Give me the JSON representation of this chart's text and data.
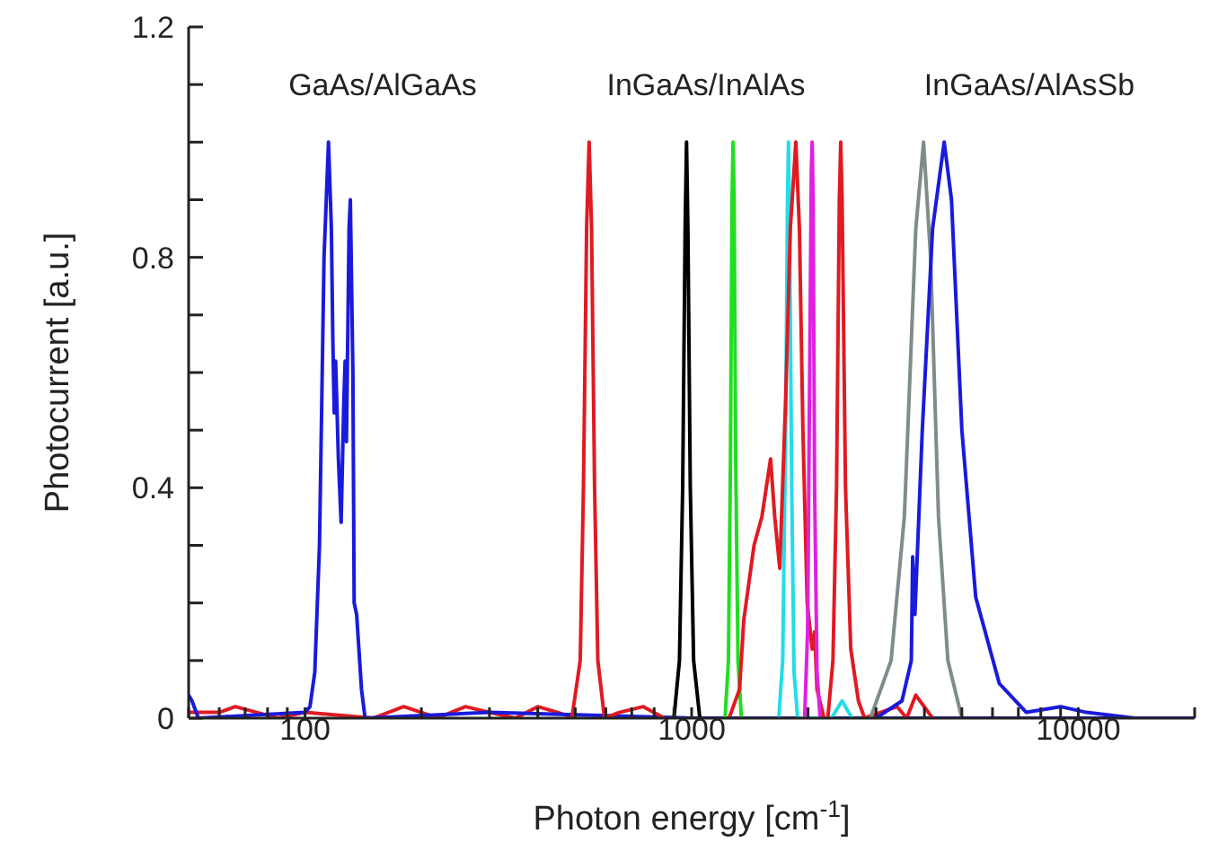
{
  "chart_data": {
    "type": "line",
    "xlabel": "Photon energy [cm$^{-1}$]",
    "ylabel": "Photocurrent [a.u.]",
    "log": "x",
    "marker": "none",
    "line_style": "solid",
    "xlim": [
      50,
      20000
    ],
    "xticks": [
      {
        "value": 50,
        "label": null
      },
      {
        "value": 60,
        "label": null
      },
      {
        "value": 70,
        "label": null
      },
      {
        "value": 80,
        "label": null
      },
      {
        "value": 90,
        "label": null
      },
      100,
      {
        "value": 200,
        "label": null
      },
      {
        "value": 300,
        "label": null
      },
      {
        "value": 400,
        "label": null
      },
      {
        "value": 500,
        "label": null
      },
      {
        "value": 600,
        "label": null
      },
      {
        "value": 700,
        "label": null
      },
      {
        "value": 800,
        "label": null
      },
      {
        "value": 900,
        "label": null
      },
      1000,
      {
        "value": 2000,
        "label": null
      },
      {
        "value": 3000,
        "label": null
      },
      {
        "value": 4000,
        "label": null
      },
      {
        "value": 5000,
        "label": null
      },
      {
        "value": 6000,
        "label": null
      },
      {
        "value": 7000,
        "label": null
      },
      {
        "value": 8000,
        "label": null
      },
      {
        "value": 9000,
        "label": null
      },
      10000,
      {
        "value": 20000,
        "label": null
      }
    ],
    "ylim": [
      0,
      1.2
    ],
    "yticks": [
      0,
      {
        "value": 0.1,
        "label": null
      },
      {
        "value": 0.2,
        "label": null
      },
      {
        "value": 0.3,
        "label": null
      },
      0.4,
      {
        "value": 0.5,
        "label": null
      },
      {
        "value": 0.6,
        "label": null
      },
      {
        "value": 0.7,
        "label": null
      },
      0.8,
      {
        "value": 0.9,
        "label": null
      },
      {
        "value": 1.0,
        "label": null
      },
      {
        "value": 1.1,
        "label": null
      },
      1.2
    ],
    "annotations": [
      "GaAs/AlGaAs",
      "InGaAs/InAlAs",
      "InGaAs/AlAsSb"
    ],
    "series": [
      {
        "color": "#e01a22",
        "x": [
          50,
          60,
          66,
          75,
          85,
          100,
          150,
          180,
          200,
          220,
          260,
          300,
          350,
          400,
          450,
          500
        ],
        "values": [
          0.01,
          0.01,
          0.02,
          0.01,
          0.0,
          0.01,
          0.0,
          0.02,
          0.01,
          0.0,
          0.02,
          0.01,
          0.0,
          0.02,
          0.01,
          0.0
        ]
      },
      {
        "color": "#1a1adc",
        "x": [
          50,
          51,
          53,
          100,
          103,
          106,
          109,
          112,
          115,
          117,
          118,
          119,
          120,
          122,
          124,
          126,
          127,
          128,
          130,
          131,
          133,
          134,
          136,
          140,
          143,
          300,
          1000,
          3000,
          20000
        ],
        "values": [
          0.04,
          0.03,
          0.0,
          0.01,
          0.02,
          0.08,
          0.3,
          0.8,
          1.0,
          0.85,
          0.66,
          0.53,
          0.62,
          0.45,
          0.34,
          0.55,
          0.62,
          0.48,
          0.85,
          0.9,
          0.6,
          0.2,
          0.18,
          0.05,
          0.0,
          0.01,
          0.0,
          0.0,
          0.0
        ]
      },
      {
        "color": "#e01a22",
        "x": [
          490,
          515,
          525,
          535,
          543,
          551,
          561,
          572,
          595,
          650,
          750,
          850
        ],
        "values": [
          0.0,
          0.1,
          0.4,
          0.85,
          1.0,
          0.85,
          0.4,
          0.1,
          0.0,
          0.01,
          0.02,
          0.0
        ]
      },
      {
        "color": "#000000",
        "x": [
          900,
          930,
          948,
          962,
          970,
          978,
          992,
          1012,
          1050
        ],
        "values": [
          0.0,
          0.1,
          0.4,
          0.85,
          1.0,
          0.85,
          0.4,
          0.1,
          0.0
        ]
      },
      {
        "color": "#22dd22",
        "x": [
          1220,
          1245,
          1260,
          1272,
          1280,
          1288,
          1300,
          1318,
          1345
        ],
        "values": [
          0.0,
          0.1,
          0.45,
          0.9,
          1.0,
          0.9,
          0.45,
          0.1,
          0.0
        ]
      },
      {
        "color": "#22dde8",
        "x": [
          1680,
          1720,
          1750,
          1770,
          1780,
          1792,
          1815,
          1840,
          1880,
          2300,
          2450,
          2600
        ],
        "values": [
          0.0,
          0.1,
          0.5,
          0.9,
          1.0,
          0.85,
          0.4,
          0.08,
          0.0,
          0.0,
          0.03,
          0.0
        ]
      },
      {
        "color": "#e01a22",
        "x": [
          1250,
          1330,
          1364,
          1450,
          1520,
          1600,
          1640,
          1690,
          1750,
          1800,
          1860,
          1900,
          1940,
          1990,
          2050,
          2080,
          2110,
          2200
        ],
        "values": [
          0.0,
          0.05,
          0.17,
          0.3,
          0.35,
          0.45,
          0.35,
          0.26,
          0.55,
          0.85,
          1.0,
          0.85,
          0.5,
          0.2,
          0.12,
          0.15,
          0.05,
          0.0
        ]
      },
      {
        "color": "#e020e0",
        "x": [
          1960,
          1995,
          2020,
          2040,
          2050,
          2062,
          2080,
          2110,
          2150
        ],
        "values": [
          0.0,
          0.15,
          0.6,
          0.95,
          1.0,
          0.9,
          0.4,
          0.08,
          0.0
        ]
      },
      {
        "color": "#e01a22",
        "x": [
          2250,
          2320,
          2370,
          2410,
          2430,
          2450,
          2500,
          2580,
          2700,
          2800,
          3400,
          3600,
          3800,
          4200
        ],
        "values": [
          0.0,
          0.1,
          0.4,
          0.9,
          1.0,
          0.9,
          0.4,
          0.12,
          0.03,
          0.0,
          0.02,
          0.0,
          0.04,
          0.0
        ]
      },
      {
        "color": "#7f8c8c",
        "x": [
          2900,
          3280,
          3550,
          3800,
          3980,
          4150,
          4350,
          4600,
          5000
        ],
        "values": [
          0.0,
          0.1,
          0.35,
          0.85,
          1.0,
          0.8,
          0.35,
          0.1,
          0.0
        ]
      },
      {
        "color": "#1a1adc",
        "x": [
          3000,
          3500,
          3700,
          3730,
          3780,
          3950,
          4200,
          4500,
          4700,
          5000,
          5430,
          6250,
          7340,
          9000,
          10500,
          14000
        ],
        "values": [
          0.0,
          0.03,
          0.1,
          0.28,
          0.18,
          0.5,
          0.85,
          1.0,
          0.9,
          0.5,
          0.21,
          0.06,
          0.01,
          0.02,
          0.01,
          0.0
        ]
      }
    ]
  }
}
